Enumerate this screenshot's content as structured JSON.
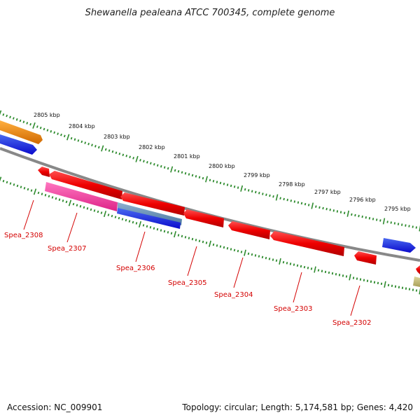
{
  "title": "Shewanella pealeana ATCC 700345, complete genome",
  "kbp_labels": [
    "2805 kbp",
    "2804 kbp",
    "2803 kbp",
    "2802 kbp",
    "2801 kbp",
    "2800 kbp",
    "2799 kbp",
    "2798 kbp",
    "2797 kbp",
    "2796 kbp",
    "2795 kbp"
  ],
  "genes": [
    "Spea_2308",
    "Spea_2307",
    "Spea_2306",
    "Spea_2305",
    "Spea_2304",
    "Spea_2303",
    "Spea_2302"
  ],
  "footer": {
    "accession": "Accession: NC_009901",
    "summary": "Topology: circular; Length: 5,174,581 bp; Genes: 4,420"
  },
  "colors": {
    "backbone": "#888888",
    "tick": "#2e8b2e",
    "gene_red": "#ee0000",
    "gene_pink": "#ee3399",
    "gene_blue": "#1a1aee",
    "gene_orange": "#ff8c00",
    "gene_olive": "#c8bf78",
    "label_red": "#d40000"
  }
}
